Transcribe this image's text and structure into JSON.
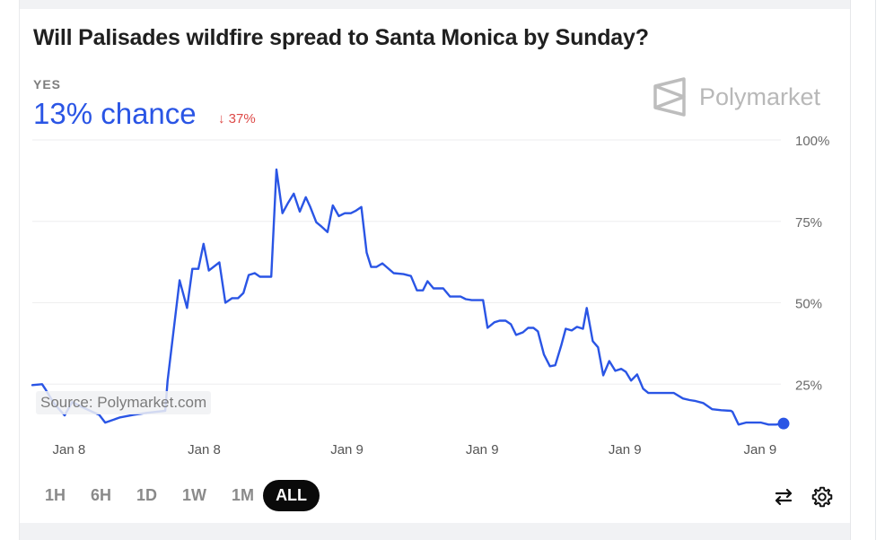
{
  "header": {
    "title": "Will Palisades wildfire spread to Santa Monica by Sunday?",
    "outcome_label": "YES",
    "chance_text": "13% chance",
    "change_arrow": "↓",
    "change_text": "37%",
    "brand": "Polymarket"
  },
  "colors": {
    "accent": "#2a55e5",
    "negative": "#dd4a48",
    "active_button_bg": "#0a0a0a",
    "band": "#f1f2f4"
  },
  "source_label": "Source: Polymarket.com",
  "timeframes": [
    {
      "label": "1H",
      "active": false
    },
    {
      "label": "6H",
      "active": false
    },
    {
      "label": "1D",
      "active": false
    },
    {
      "label": "1W",
      "active": false
    },
    {
      "label": "1M",
      "active": false
    },
    {
      "label": "ALL",
      "active": true
    }
  ],
  "icons": {
    "swap": "swap-arrows-icon",
    "settings": "gear-icon"
  },
  "chart_data": {
    "type": "line",
    "title": "Will Palisades wildfire spread to Santa Monica by Sunday?",
    "series_name": "YES",
    "xlabel": "",
    "ylabel": "",
    "ylim": [
      0,
      100
    ],
    "y_ticks": [
      {
        "value": 100,
        "label": "100%"
      },
      {
        "value": 75,
        "label": "75%"
      },
      {
        "value": 50,
        "label": "50%"
      },
      {
        "value": 25,
        "label": "25%"
      }
    ],
    "x_tick_labels": [
      "Jan 8",
      "Jan 8",
      "Jan 9",
      "Jan 9",
      "Jan 9",
      "Jan 9"
    ],
    "x_tick_positions": [
      0.05,
      0.23,
      0.42,
      0.6,
      0.79,
      0.97
    ],
    "grid": true,
    "legend": "none",
    "end_marker": true,
    "points": [
      [
        0.0,
        24.7
      ],
      [
        0.013,
        25.0
      ],
      [
        0.017,
        23.6
      ],
      [
        0.029,
        19.0
      ],
      [
        0.043,
        15.4
      ],
      [
        0.053,
        19.5
      ],
      [
        0.066,
        18.0
      ],
      [
        0.08,
        16.5
      ],
      [
        0.089,
        15.6
      ],
      [
        0.097,
        13.2
      ],
      [
        0.117,
        14.8
      ],
      [
        0.135,
        15.6
      ],
      [
        0.153,
        16.2
      ],
      [
        0.177,
        16.8
      ],
      [
        0.18,
        26.0
      ],
      [
        0.196,
        56.9
      ],
      [
        0.206,
        48.4
      ],
      [
        0.213,
        60.4
      ],
      [
        0.221,
        60.4
      ],
      [
        0.228,
        68.1
      ],
      [
        0.235,
        59.9
      ],
      [
        0.249,
        62.4
      ],
      [
        0.257,
        50.0
      ],
      [
        0.266,
        51.4
      ],
      [
        0.274,
        51.4
      ],
      [
        0.281,
        53.0
      ],
      [
        0.288,
        58.5
      ],
      [
        0.296,
        59.1
      ],
      [
        0.303,
        58.0
      ],
      [
        0.318,
        58.0
      ],
      [
        0.325,
        90.9
      ],
      [
        0.333,
        77.5
      ],
      [
        0.34,
        80.5
      ],
      [
        0.348,
        83.5
      ],
      [
        0.356,
        78.0
      ],
      [
        0.364,
        82.4
      ],
      [
        0.37,
        79.4
      ],
      [
        0.378,
        74.7
      ],
      [
        0.385,
        73.4
      ],
      [
        0.393,
        71.7
      ],
      [
        0.4,
        79.9
      ],
      [
        0.408,
        76.6
      ],
      [
        0.416,
        77.5
      ],
      [
        0.424,
        77.5
      ],
      [
        0.431,
        78.3
      ],
      [
        0.438,
        79.4
      ],
      [
        0.445,
        65.4
      ],
      [
        0.451,
        61.0
      ],
      [
        0.458,
        61.0
      ],
      [
        0.466,
        62.1
      ],
      [
        0.481,
        59.1
      ],
      [
        0.494,
        58.8
      ],
      [
        0.504,
        58.2
      ],
      [
        0.512,
        53.8
      ],
      [
        0.52,
        53.8
      ],
      [
        0.526,
        56.6
      ],
      [
        0.534,
        54.4
      ],
      [
        0.547,
        54.4
      ],
      [
        0.556,
        51.9
      ],
      [
        0.57,
        51.9
      ],
      [
        0.577,
        51.1
      ],
      [
        0.585,
        50.8
      ],
      [
        0.6,
        50.8
      ],
      [
        0.606,
        42.3
      ],
      [
        0.615,
        44.0
      ],
      [
        0.622,
        44.5
      ],
      [
        0.63,
        44.5
      ],
      [
        0.637,
        43.4
      ],
      [
        0.644,
        40.1
      ],
      [
        0.653,
        40.9
      ],
      [
        0.66,
        42.3
      ],
      [
        0.667,
        42.3
      ],
      [
        0.673,
        41.2
      ],
      [
        0.681,
        34.1
      ],
      [
        0.689,
        30.5
      ],
      [
        0.696,
        30.8
      ],
      [
        0.704,
        36.8
      ],
      [
        0.71,
        42.0
      ],
      [
        0.718,
        41.5
      ],
      [
        0.725,
        42.6
      ],
      [
        0.733,
        42.0
      ],
      [
        0.738,
        48.4
      ],
      [
        0.746,
        38.2
      ],
      [
        0.753,
        36.3
      ],
      [
        0.76,
        27.7
      ],
      [
        0.768,
        32.1
      ],
      [
        0.776,
        29.1
      ],
      [
        0.784,
        29.7
      ],
      [
        0.79,
        28.8
      ],
      [
        0.797,
        26.1
      ],
      [
        0.805,
        28.0
      ],
      [
        0.813,
        23.6
      ],
      [
        0.82,
        22.3
      ],
      [
        0.828,
        22.3
      ],
      [
        0.848,
        22.3
      ],
      [
        0.854,
        22.3
      ],
      [
        0.866,
        20.6
      ],
      [
        0.875,
        20.1
      ],
      [
        0.883,
        19.8
      ],
      [
        0.893,
        19.2
      ],
      [
        0.905,
        17.3
      ],
      [
        0.917,
        17.0
      ],
      [
        0.93,
        16.8
      ],
      [
        0.932,
        16.5
      ],
      [
        0.94,
        12.6
      ],
      [
        0.95,
        13.2
      ],
      [
        0.97,
        13.2
      ],
      [
        0.98,
        12.6
      ],
      [
        0.99,
        12.6
      ],
      [
        1.0,
        12.9
      ]
    ]
  }
}
